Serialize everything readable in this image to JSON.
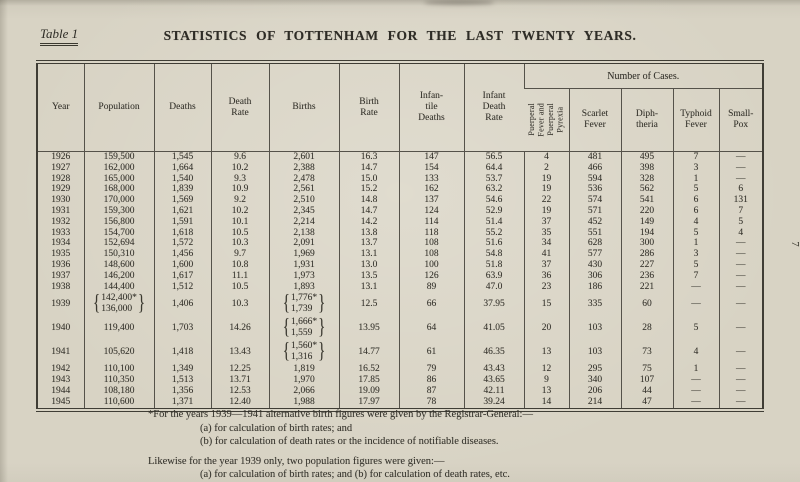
{
  "page": {
    "table_label": "Table 1",
    "title": "STATISTICS OF TOTTENHAM FOR THE LAST TWENTY YEARS.",
    "page_number": "7"
  },
  "table": {
    "headers": {
      "year": "Year",
      "population": "Population",
      "deaths": "Deaths",
      "death_rate": "Death\nRate",
      "births": "Births",
      "birth_rate": "Birth\nRate",
      "infantile_deaths": "Infan-\ntile\nDeaths",
      "infant_death_rate": "Infant\nDeath\nRate",
      "number_of_cases": "Number of Cases.",
      "puerperal": "Puerperal\nFever and\nPuerperal\nPyrexia",
      "scarlet_fever": "Scarlet\nFever",
      "diphtheria": "Diph-\ntheria",
      "typhoid_fever": "Typhoid\nFever",
      "smallpox": "Small-\nPox"
    },
    "rows": [
      {
        "year": "1926",
        "population": "159,500",
        "deaths": "1,545",
        "death_rate": "9.6",
        "births": "2,601",
        "birth_rate": "16.3",
        "infantile_deaths": "147",
        "infant_death_rate": "56.5",
        "puerperal_cases": "4",
        "scarlet_fever": "481",
        "diphtheria": "495",
        "typhoid_fever": "7",
        "smallpox": "—"
      },
      {
        "year": "1927",
        "population": "162,000",
        "deaths": "1,664",
        "death_rate": "10.2",
        "births": "2,388",
        "birth_rate": "14.7",
        "infantile_deaths": "154",
        "infant_death_rate": "64.4",
        "puerperal_cases": "2",
        "scarlet_fever": "466",
        "diphtheria": "398",
        "typhoid_fever": "3",
        "smallpox": "—"
      },
      {
        "year": "1928",
        "population": "165,000",
        "deaths": "1,540",
        "death_rate": "9.3",
        "births": "2,478",
        "birth_rate": "15.0",
        "infantile_deaths": "133",
        "infant_death_rate": "53.7",
        "puerperal_cases": "19",
        "scarlet_fever": "594",
        "diphtheria": "328",
        "typhoid_fever": "1",
        "smallpox": "—"
      },
      {
        "year": "1929",
        "population": "168,000",
        "deaths": "1,839",
        "death_rate": "10.9",
        "births": "2,561",
        "birth_rate": "15.2",
        "infantile_deaths": "162",
        "infant_death_rate": "63.2",
        "puerperal_cases": "19",
        "scarlet_fever": "536",
        "diphtheria": "562",
        "typhoid_fever": "5",
        "smallpox": "6"
      },
      {
        "year": "1930",
        "population": "170,000",
        "deaths": "1,569",
        "death_rate": "9.2",
        "births": "2,510",
        "birth_rate": "14.8",
        "infantile_deaths": "137",
        "infant_death_rate": "54.6",
        "puerperal_cases": "22",
        "scarlet_fever": "574",
        "diphtheria": "541",
        "typhoid_fever": "6",
        "smallpox": "131"
      },
      {
        "year": "1931",
        "population": "159,300",
        "deaths": "1,621",
        "death_rate": "10.2",
        "births": "2,345",
        "birth_rate": "14.7",
        "infantile_deaths": "124",
        "infant_death_rate": "52.9",
        "puerperal_cases": "19",
        "scarlet_fever": "571",
        "diphtheria": "220",
        "typhoid_fever": "6",
        "smallpox": "7"
      },
      {
        "year": "1932",
        "population": "156,800",
        "deaths": "1,591",
        "death_rate": "10.1",
        "births": "2,214",
        "birth_rate": "14.2",
        "infantile_deaths": "114",
        "infant_death_rate": "51.4",
        "puerperal_cases": "37",
        "scarlet_fever": "452",
        "diphtheria": "149",
        "typhoid_fever": "4",
        "smallpox": "5"
      },
      {
        "year": "1933",
        "population": "154,700",
        "deaths": "1,618",
        "death_rate": "10.5",
        "births": "2,138",
        "birth_rate": "13.8",
        "infantile_deaths": "118",
        "infant_death_rate": "55.2",
        "puerperal_cases": "35",
        "scarlet_fever": "551",
        "diphtheria": "194",
        "typhoid_fever": "5",
        "smallpox": "4"
      },
      {
        "year": "1934",
        "population": "152,694",
        "deaths": "1,572",
        "death_rate": "10.3",
        "births": "2,091",
        "birth_rate": "13.7",
        "infantile_deaths": "108",
        "infant_death_rate": "51.6",
        "puerperal_cases": "34",
        "scarlet_fever": "628",
        "diphtheria": "300",
        "typhoid_fever": "1",
        "smallpox": "—"
      },
      {
        "year": "1935",
        "population": "150,310",
        "deaths": "1,456",
        "death_rate": "9.7",
        "births": "1,969",
        "birth_rate": "13.1",
        "infantile_deaths": "108",
        "infant_death_rate": "54.8",
        "puerperal_cases": "41",
        "scarlet_fever": "577",
        "diphtheria": "286",
        "typhoid_fever": "3",
        "smallpox": "—"
      },
      {
        "year": "1936",
        "population": "148,600",
        "deaths": "1,600",
        "death_rate": "10.8",
        "births": "1,931",
        "birth_rate": "13.0",
        "infantile_deaths": "100",
        "infant_death_rate": "51.8",
        "puerperal_cases": "37",
        "scarlet_fever": "430",
        "diphtheria": "227",
        "typhoid_fever": "5",
        "smallpox": "—"
      },
      {
        "year": "1937",
        "population": "146,200",
        "deaths": "1,617",
        "death_rate": "11.1",
        "births": "1,973",
        "birth_rate": "13.5",
        "infantile_deaths": "126",
        "infant_death_rate": "63.9",
        "puerperal_cases": "36",
        "scarlet_fever": "306",
        "diphtheria": "236",
        "typhoid_fever": "7",
        "smallpox": "—"
      },
      {
        "year": "1938",
        "population": "144,400",
        "deaths": "1,512",
        "death_rate": "10.5",
        "births": "1,893",
        "birth_rate": "13.1",
        "infantile_deaths": "89",
        "infant_death_rate": "47.0",
        "puerperal_cases": "23",
        "scarlet_fever": "186",
        "diphtheria": "221",
        "typhoid_fever": "—",
        "smallpox": "—"
      },
      {
        "year": "1939",
        "population": {
          "braced": [
            "142,400*",
            "136,000"
          ]
        },
        "deaths": "1,406",
        "death_rate": "10.3",
        "births": {
          "braced": [
            "1,776*",
            "1,739"
          ]
        },
        "birth_rate": "12.5",
        "infantile_deaths": "66",
        "infant_death_rate": "37.95",
        "puerperal_cases": "15",
        "scarlet_fever": "335",
        "diphtheria": "60",
        "typhoid_fever": "—",
        "smallpox": "—"
      },
      {
        "year": "1940",
        "population": "119,400",
        "deaths": "1,703",
        "death_rate": "14.26",
        "births": {
          "braced": [
            "1,666*",
            "1,559"
          ]
        },
        "birth_rate": "13.95",
        "infantile_deaths": "64",
        "infant_death_rate": "41.05",
        "puerperal_cases": "20",
        "scarlet_fever": "103",
        "diphtheria": "28",
        "typhoid_fever": "5",
        "smallpox": "—"
      },
      {
        "year": "1941",
        "population": "105,620",
        "deaths": "1,418",
        "death_rate": "13.43",
        "births": {
          "braced": [
            "1,560*",
            "1,316"
          ]
        },
        "birth_rate": "14.77",
        "infantile_deaths": "61",
        "infant_death_rate": "46.35",
        "puerperal_cases": "13",
        "scarlet_fever": "103",
        "diphtheria": "73",
        "typhoid_fever": "4",
        "smallpox": "—"
      },
      {
        "year": "1942",
        "population": "110,100",
        "deaths": "1,349",
        "death_rate": "12.25",
        "births": "1,819",
        "birth_rate": "16.52",
        "infantile_deaths": "79",
        "infant_death_rate": "43.43",
        "puerperal_cases": "12",
        "scarlet_fever": "295",
        "diphtheria": "75",
        "typhoid_fever": "1",
        "smallpox": "—"
      },
      {
        "year": "1943",
        "population": "110,350",
        "deaths": "1,513",
        "death_rate": "13.71",
        "births": "1,970",
        "birth_rate": "17.85",
        "infantile_deaths": "86",
        "infant_death_rate": "43.65",
        "puerperal_cases": "9",
        "scarlet_fever": "340",
        "diphtheria": "107",
        "typhoid_fever": "—",
        "smallpox": "—"
      },
      {
        "year": "1944",
        "population": "108,180",
        "deaths": "1,356",
        "death_rate": "12.53",
        "births": "2,066",
        "birth_rate": "19.09",
        "infantile_deaths": "87",
        "infant_death_rate": "42.11",
        "puerperal_cases": "13",
        "scarlet_fever": "206",
        "diphtheria": "44",
        "typhoid_fever": "—",
        "smallpox": "—"
      },
      {
        "year": "1945",
        "population": "110,600",
        "deaths": "1,371",
        "death_rate": "12.40",
        "births": "1,988",
        "birth_rate": "17.97",
        "infantile_deaths": "78",
        "infant_death_rate": "39.24",
        "puerperal_cases": "14",
        "scarlet_fever": "214",
        "diphtheria": "47",
        "typhoid_fever": "—",
        "smallpox": "—"
      }
    ]
  },
  "footnotes": {
    "lines": [
      {
        "text": "*For the years 1939—1941 alternative birth figures were given by the Registrar-General:—",
        "indent": 1,
        "gap": false
      },
      {
        "text": "(a) for calculation of birth rates; and",
        "indent": 2,
        "gap": false
      },
      {
        "text": "(b) for calculation of death rates or the incidence of notifiable diseases.",
        "indent": 2,
        "gap": false
      },
      {
        "text": "Likewise for the year 1939 only, two population figures were given:—",
        "indent": 1,
        "gap": true
      },
      {
        "text": "(a) for calculation of birth rates; and (b) for calculation of death rates, etc.",
        "indent": 2,
        "gap": false
      }
    ]
  }
}
